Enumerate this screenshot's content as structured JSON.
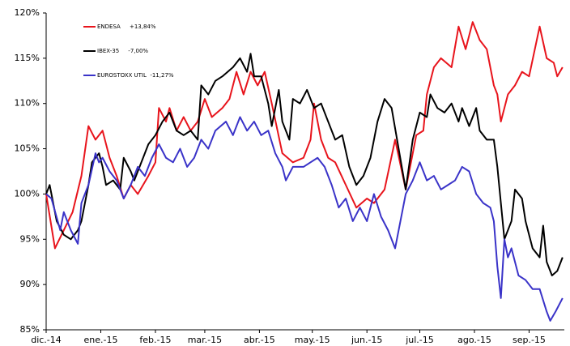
{
  "chart_data": {
    "type": "line",
    "xlim": [
      0,
      294
    ],
    "xticks": [
      {
        "value": 0,
        "label": "dic.-14"
      },
      {
        "value": 31,
        "label": "ene.-15"
      },
      {
        "value": 62,
        "label": "feb.-15"
      },
      {
        "value": 90,
        "label": "mar.-15"
      },
      {
        "value": 121,
        "label": "abr.-15"
      },
      {
        "value": 151,
        "label": "may.-15"
      },
      {
        "value": 182,
        "label": "jun.-15"
      },
      {
        "value": 212,
        "label": "jul.-15"
      },
      {
        "value": 243,
        "label": "ago.-15"
      },
      {
        "value": 274,
        "label": "sep.-15"
      }
    ],
    "ylim": [
      85,
      120
    ],
    "yticks": [
      {
        "value": 85,
        "label": "85%"
      },
      {
        "value": 90,
        "label": "90%"
      },
      {
        "value": 95,
        "label": "95%"
      },
      {
        "value": 100,
        "label": "100%"
      },
      {
        "value": 105,
        "label": "105%"
      },
      {
        "value": 110,
        "label": "110%"
      },
      {
        "value": 115,
        "label": "115%"
      },
      {
        "value": 120,
        "label": "120%"
      }
    ],
    "series": [
      {
        "name": "ENDESA     +13,84%",
        "color": "#e8141c",
        "x": [
          0,
          5,
          15,
          20,
          24,
          28,
          32,
          36,
          40,
          44,
          48,
          52,
          58,
          62,
          64,
          68,
          70,
          74,
          78,
          82,
          86,
          90,
          94,
          100,
          104,
          108,
          112,
          116,
          120,
          124,
          128,
          134,
          140,
          146,
          150,
          152,
          156,
          160,
          164,
          170,
          176,
          182,
          186,
          192,
          198,
          204,
          210,
          214,
          216,
          220,
          224,
          230,
          234,
          238,
          242,
          246,
          250,
          254,
          256,
          258,
          262,
          266,
          270,
          274,
          280,
          284,
          288,
          290,
          293
        ],
        "values": [
          100,
          94,
          98,
          102,
          107.5,
          106,
          107,
          104,
          102,
          99.5,
          101,
          100,
          102,
          103.5,
          109.5,
          108,
          109.5,
          107,
          108.5,
          107,
          108,
          110.5,
          108.5,
          109.5,
          110.5,
          113.5,
          111,
          113.5,
          112,
          113.5,
          110,
          104.5,
          103.5,
          104,
          106,
          110,
          106,
          104,
          103.5,
          101,
          98.5,
          99.5,
          99,
          100.5,
          106,
          100.5,
          106.5,
          107,
          111,
          114,
          115,
          114,
          118.5,
          116,
          119,
          117,
          116,
          112,
          111,
          108,
          111,
          112,
          113.5,
          113,
          118.5,
          115,
          114.5,
          113,
          114
        ]
      },
      {
        "name": "IBEX-35     -7,00%",
        "color": "#000000",
        "x": [
          0,
          2,
          6,
          10,
          14,
          18,
          20,
          24,
          26,
          30,
          32,
          34,
          38,
          42,
          44,
          48,
          50,
          54,
          58,
          62,
          66,
          70,
          74,
          78,
          82,
          86,
          88,
          92,
          96,
          100,
          106,
          110,
          114,
          116,
          118,
          122,
          126,
          128,
          132,
          134,
          138,
          140,
          144,
          148,
          152,
          156,
          160,
          164,
          168,
          172,
          176,
          180,
          184,
          188,
          192,
          196,
          200,
          204,
          208,
          212,
          216,
          218,
          222,
          226,
          230,
          234,
          236,
          240,
          244,
          246,
          250,
          254,
          256,
          260,
          264,
          266,
          270,
          272,
          276,
          280,
          282,
          284,
          287,
          290,
          293
        ],
        "values": [
          100,
          101,
          97,
          95.5,
          95,
          96,
          97,
          101,
          103.5,
          104.5,
          103,
          101,
          101.5,
          100.5,
          104,
          102.5,
          101.5,
          103.5,
          105.5,
          106.5,
          108,
          109,
          107,
          106.5,
          107,
          106,
          112,
          111,
          112.5,
          113,
          114,
          115,
          113.5,
          115.5,
          113,
          113,
          110,
          107.5,
          111.5,
          108,
          106,
          110.5,
          110,
          111.5,
          109.5,
          110,
          108,
          106,
          106.5,
          103,
          101,
          102,
          104,
          108,
          110.5,
          109.5,
          105,
          100.5,
          106,
          109,
          108.5,
          111,
          109.5,
          109,
          110,
          108,
          109.5,
          107.5,
          109.5,
          107,
          106,
          106,
          103,
          95,
          97,
          100.5,
          99.5,
          97,
          94,
          93,
          96.5,
          92.5,
          91,
          91.5,
          93
        ]
      },
      {
        "name": "EUROSTOXX UTIL  -11,27%",
        "color": "#3a33c8",
        "x": [
          0,
          3,
          8,
          10,
          14,
          18,
          20,
          24,
          28,
          30,
          32,
          36,
          40,
          44,
          48,
          52,
          56,
          60,
          64,
          68,
          72,
          76,
          80,
          84,
          88,
          92,
          96,
          102,
          106,
          110,
          114,
          118,
          122,
          126,
          130,
          134,
          136,
          140,
          146,
          150,
          154,
          158,
          162,
          166,
          170,
          174,
          178,
          182,
          186,
          190,
          194,
          198,
          204,
          208,
          212,
          216,
          220,
          224,
          228,
          232,
          236,
          240,
          244,
          248,
          252,
          254,
          256,
          258,
          260,
          262,
          264,
          268,
          272,
          276,
          280,
          284,
          286,
          289,
          293
        ],
        "values": [
          100,
          99.5,
          96,
          98,
          96,
          94.5,
          99,
          101,
          104.5,
          103.5,
          104,
          102.5,
          101.5,
          99.5,
          101,
          103,
          102,
          104,
          105.5,
          104,
          103.5,
          105,
          103,
          104,
          106,
          105,
          107,
          108,
          106.5,
          108.5,
          107,
          108,
          106.5,
          107,
          104.5,
          103,
          101.5,
          103,
          103,
          103.5,
          104,
          103,
          101,
          98.5,
          99.5,
          97,
          98.5,
          97,
          100,
          97.5,
          96,
          94,
          100,
          101.5,
          103.5,
          101.5,
          102,
          100.5,
          101,
          101.5,
          103,
          102.5,
          100,
          99,
          98.5,
          97,
          92,
          88.5,
          95,
          93,
          94,
          91,
          90.5,
          89.5,
          89.5,
          87,
          86,
          87,
          88.5
        ]
      }
    ]
  }
}
